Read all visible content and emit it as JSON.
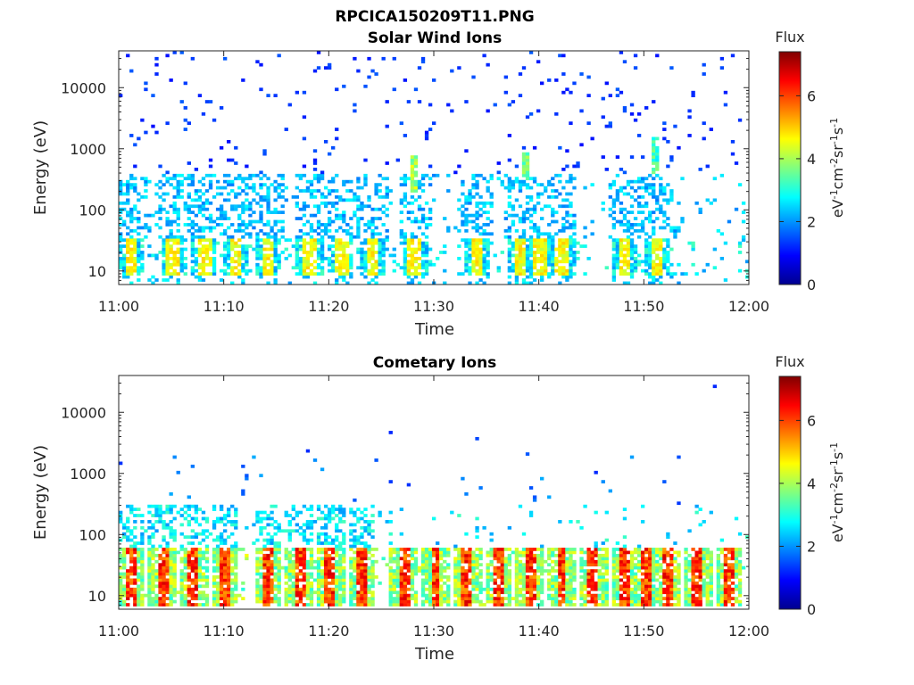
{
  "figure_title": "RPCICA150209T11.PNG",
  "chart_data": [
    {
      "type": "heatmap",
      "title": "Solar Wind Ions",
      "xlabel": "Time",
      "ylabel": "Energy (eV)",
      "x_ticks": [
        "11:00",
        "11:10",
        "11:20",
        "11:30",
        "11:40",
        "11:50",
        "12:00"
      ],
      "xlim": [
        "11:00",
        "12:00"
      ],
      "y_scale": "log",
      "y_ticks": [
        "10",
        "100",
        "1000",
        "10000"
      ],
      "ylim": [
        6,
        40000
      ],
      "colorbar": {
        "title": "Flux",
        "label": "eV-1cm-2sr-1s-1",
        "ticks": [
          "0",
          "2",
          "4",
          "6"
        ],
        "range": [
          0,
          7.4
        ],
        "colormap": "jet"
      },
      "features": {
        "burst_times_min": [
          1,
          5,
          8,
          11,
          14,
          18,
          21,
          24,
          28,
          34,
          38,
          40,
          42,
          48,
          51
        ],
        "hot_streaks": [
          {
            "t_min": 28,
            "energy_eV": [
              200,
              800
            ],
            "flux": 4.6
          },
          {
            "t_min": 38.5,
            "energy_eV": [
              300,
              900
            ],
            "flux": 4.2
          },
          {
            "t_min": 51,
            "energy_eV": [
              400,
              1500
            ],
            "flux": 3.8
          }
        ],
        "dominant_energy_band_eV": [
          10,
          40
        ]
      }
    },
    {
      "type": "heatmap",
      "title": "Cometary Ions",
      "xlabel": "Time",
      "ylabel": "Energy (eV)",
      "x_ticks": [
        "11:00",
        "11:10",
        "11:20",
        "11:30",
        "11:40",
        "11:50",
        "12:00"
      ],
      "xlim": [
        "11:00",
        "12:00"
      ],
      "y_scale": "log",
      "y_ticks": [
        "10",
        "100",
        "1000",
        "10000"
      ],
      "ylim": [
        6,
        40000
      ],
      "colorbar": {
        "title": "Flux",
        "label": "eV-1cm-2sr-1s-1",
        "ticks": [
          "0",
          "2",
          "4",
          "6"
        ],
        "range": [
          0,
          7.4
        ],
        "colormap": "jet"
      },
      "features": {
        "burst_times_min": [
          1,
          4,
          7,
          10,
          14,
          17,
          20,
          23,
          27,
          30,
          33,
          36,
          39,
          42,
          45,
          48,
          50,
          52,
          55,
          58
        ],
        "max_flux": 6.8,
        "dominant_energy_band_eV": [
          8,
          200
        ]
      }
    }
  ]
}
